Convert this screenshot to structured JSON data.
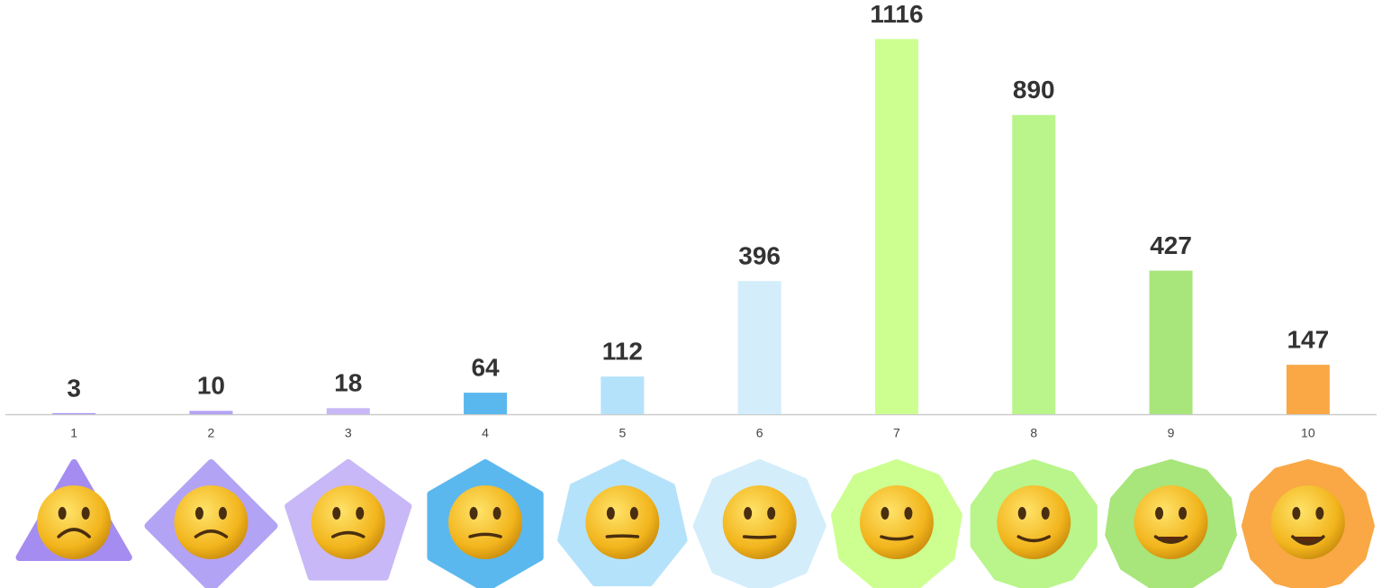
{
  "chart_data": {
    "type": "bar",
    "categories": [
      "1",
      "2",
      "3",
      "4",
      "5",
      "6",
      "7",
      "8",
      "9",
      "10"
    ],
    "values": [
      3,
      10,
      18,
      64,
      112,
      396,
      1116,
      890,
      427,
      147
    ],
    "colors": [
      "#a48cf0",
      "#b3a3f5",
      "#c8b8f7",
      "#5bb8ee",
      "#b5e2fb",
      "#d3edfb",
      "#ccff8f",
      "#b9f58a",
      "#a8e57a",
      "#f9a845"
    ],
    "ylim": [
      0,
      1200
    ]
  }
}
